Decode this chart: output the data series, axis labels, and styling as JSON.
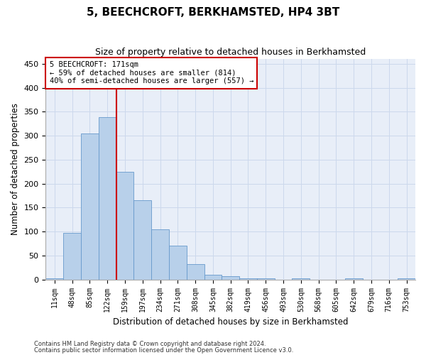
{
  "title": "5, BEECHCROFT, BERKHAMSTED, HP4 3BT",
  "subtitle": "Size of property relative to detached houses in Berkhamsted",
  "xlabel": "Distribution of detached houses by size in Berkhamsted",
  "ylabel": "Number of detached properties",
  "bin_labels": [
    "11sqm",
    "48sqm",
    "85sqm",
    "122sqm",
    "159sqm",
    "197sqm",
    "234sqm",
    "271sqm",
    "308sqm",
    "345sqm",
    "382sqm",
    "419sqm",
    "456sqm",
    "493sqm",
    "530sqm",
    "568sqm",
    "605sqm",
    "642sqm",
    "679sqm",
    "716sqm",
    "753sqm"
  ],
  "bar_heights": [
    3,
    97,
    305,
    338,
    225,
    165,
    105,
    70,
    32,
    10,
    7,
    3,
    3,
    0,
    3,
    0,
    0,
    3,
    0,
    0,
    3
  ],
  "bar_color": "#b8d0ea",
  "bar_edgecolor": "#6699cc",
  "vline_color": "#cc0000",
  "annotation_text": "5 BEECHCROFT: 171sqm\n← 59% of detached houses are smaller (814)\n40% of semi-detached houses are larger (557) →",
  "annotation_box_color": "#ffffff",
  "annotation_box_edgecolor": "#cc0000",
  "ylim": [
    0,
    460
  ],
  "yticks": [
    0,
    50,
    100,
    150,
    200,
    250,
    300,
    350,
    400,
    450
  ],
  "footer_line1": "Contains HM Land Registry data © Crown copyright and database right 2024.",
  "footer_line2": "Contains public sector information licensed under the Open Government Licence v3.0.",
  "grid_color": "#ccd8ec",
  "background_color": "#e8eef8"
}
